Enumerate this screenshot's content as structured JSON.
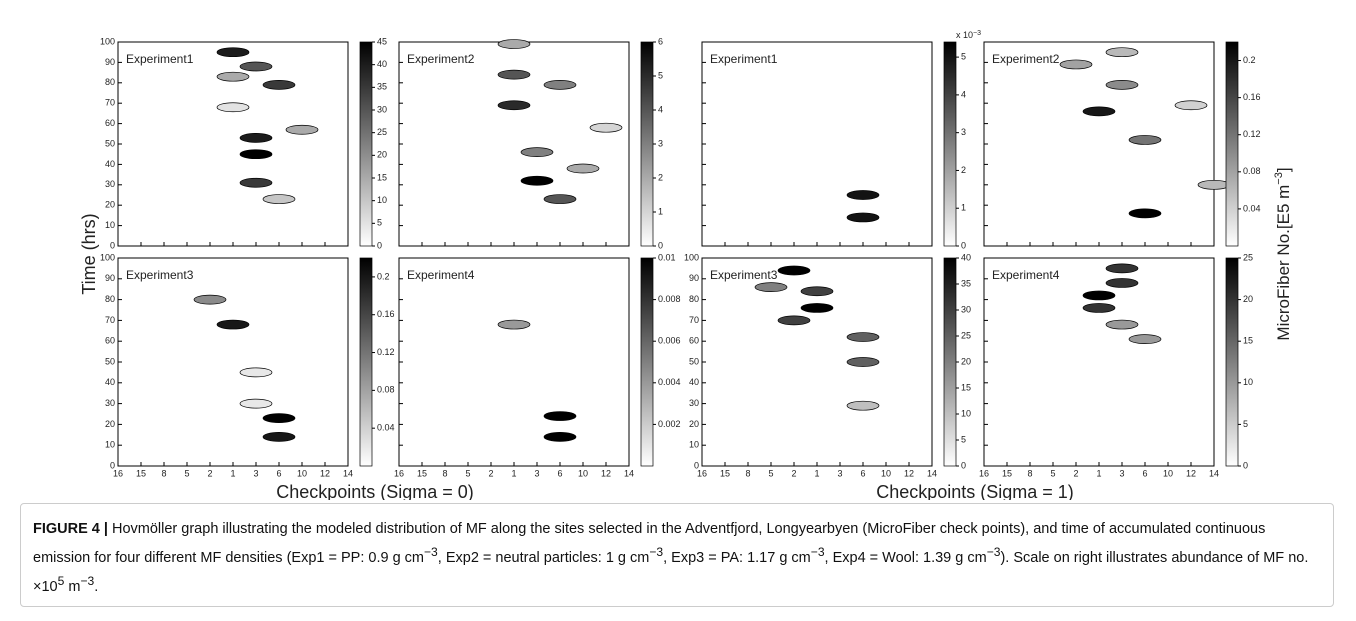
{
  "figure": {
    "ylabel": "Time (hrs)",
    "xlabel_left": "Checkpoints (Sigma = 0)",
    "xlabel_right": "Checkpoints (Sigma = 1)",
    "cbar_label": "MicroFiber No.[E5 m",
    "cbar_label_exp": "−3",
    "cbar_label_end": "]"
  },
  "chart_data": [
    {
      "type": "contour",
      "title": "Experiment1",
      "categories": [
        "16",
        "15",
        "8",
        "5",
        "2",
        "1",
        "3",
        "6",
        "10",
        "12",
        "14"
      ],
      "ylim": [
        0,
        100
      ],
      "yticks": [
        0,
        10,
        20,
        30,
        40,
        50,
        60,
        70,
        80,
        90,
        100
      ],
      "ytick_labels": true,
      "xtick_labels": false,
      "hotspots": [
        {
          "x": "1",
          "y": 95,
          "value": 40
        },
        {
          "x": "3",
          "y": 88,
          "value": 30
        },
        {
          "x": "6",
          "y": 79,
          "value": 35
        },
        {
          "x": "1",
          "y": 83,
          "value": 15
        },
        {
          "x": "1",
          "y": 68,
          "value": 5
        },
        {
          "x": "10",
          "y": 57,
          "value": 15
        },
        {
          "x": "3",
          "y": 53,
          "value": 40
        },
        {
          "x": "3",
          "y": 45,
          "value": 45
        },
        {
          "x": "3",
          "y": 31,
          "value": 35
        },
        {
          "x": "6",
          "y": 23,
          "value": 10
        }
      ],
      "colorbar": {
        "lim": [
          0,
          45
        ],
        "ticks": [
          0,
          5,
          10,
          15,
          20,
          25,
          30,
          35,
          40,
          45
        ]
      }
    },
    {
      "type": "contour",
      "title": "Experiment2",
      "categories": [
        "16",
        "15",
        "8",
        "5",
        "2",
        "1",
        "3",
        "6",
        "10",
        "12",
        "14"
      ],
      "ylim": [
        0,
        100
      ],
      "yticks": [
        0,
        10,
        20,
        30,
        40,
        50,
        60,
        70,
        80,
        90,
        100
      ],
      "ytick_labels": false,
      "xtick_labels": false,
      "hotspots": [
        {
          "x": "1",
          "y": 99,
          "value": 2
        },
        {
          "x": "1",
          "y": 84,
          "value": 4
        },
        {
          "x": "6",
          "y": 79,
          "value": 3
        },
        {
          "x": "1",
          "y": 69,
          "value": 5
        },
        {
          "x": "12",
          "y": 58,
          "value": 1
        },
        {
          "x": "3",
          "y": 46,
          "value": 3
        },
        {
          "x": "10",
          "y": 38,
          "value": 2
        },
        {
          "x": "3",
          "y": 32,
          "value": 6
        },
        {
          "x": "6",
          "y": 23,
          "value": 4
        }
      ],
      "colorbar": {
        "lim": [
          0,
          6
        ],
        "ticks": [
          0,
          1,
          2,
          3,
          4,
          5,
          6
        ]
      }
    },
    {
      "type": "contour",
      "title": "Experiment1",
      "categories": [
        "16",
        "15",
        "8",
        "5",
        "2",
        "1",
        "3",
        "6",
        "10",
        "12",
        "14"
      ],
      "ylim": [
        0,
        100
      ],
      "yticks": [
        0,
        10,
        20,
        30,
        40,
        50,
        60,
        70,
        80,
        90,
        100
      ],
      "ytick_labels": false,
      "xtick_labels": false,
      "hotspots": [
        {
          "x": "6",
          "y": 25,
          "value": 5
        },
        {
          "x": "6",
          "y": 14,
          "value": 5
        }
      ],
      "colorbar": {
        "lim": [
          0,
          5.4
        ],
        "ticks": [
          0,
          1,
          2,
          3,
          4,
          5
        ],
        "note": "x 10",
        "note_exp": "−3"
      }
    },
    {
      "type": "contour",
      "title": "Experiment2",
      "categories": [
        "16",
        "15",
        "8",
        "5",
        "2",
        "1",
        "3",
        "6",
        "10",
        "12",
        "14"
      ],
      "ylim": [
        0,
        100
      ],
      "yticks": [
        0,
        10,
        20,
        30,
        40,
        50,
        60,
        70,
        80,
        90,
        100
      ],
      "ytick_labels": false,
      "xtick_labels": false,
      "hotspots": [
        {
          "x": "3",
          "y": 95,
          "value": 0.06
        },
        {
          "x": "2",
          "y": 89,
          "value": 0.08
        },
        {
          "x": "3",
          "y": 79,
          "value": 0.1
        },
        {
          "x": "12",
          "y": 69,
          "value": 0.04
        },
        {
          "x": "1",
          "y": 66,
          "value": 0.2
        },
        {
          "x": "6",
          "y": 52,
          "value": 0.12
        },
        {
          "x": "14",
          "y": 30,
          "value": 0.06
        },
        {
          "x": "6",
          "y": 16,
          "value": 0.22
        }
      ],
      "colorbar": {
        "lim": [
          0,
          0.22
        ],
        "ticks": [
          0.04,
          0.08,
          0.12,
          0.16,
          0.2
        ]
      }
    },
    {
      "type": "contour",
      "title": "Experiment3",
      "categories": [
        "16",
        "15",
        "8",
        "5",
        "2",
        "1",
        "3",
        "6",
        "10",
        "12",
        "14"
      ],
      "ylim": [
        0,
        100
      ],
      "yticks": [
        0,
        10,
        20,
        30,
        40,
        50,
        60,
        70,
        80,
        90,
        100
      ],
      "ytick_labels": true,
      "xtick_labels": true,
      "hotspots": [
        {
          "x": "2",
          "y": 80,
          "value": 0.1
        },
        {
          "x": "1",
          "y": 68,
          "value": 0.2
        },
        {
          "x": "3",
          "y": 45,
          "value": 0.02
        },
        {
          "x": "3",
          "y": 30,
          "value": 0.02
        },
        {
          "x": "6",
          "y": 23,
          "value": 0.22
        },
        {
          "x": "6",
          "y": 14,
          "value": 0.2
        }
      ],
      "colorbar": {
        "lim": [
          0,
          0.22
        ],
        "ticks": [
          0.04,
          0.08,
          0.12,
          0.16,
          0.2
        ]
      }
    },
    {
      "type": "contour",
      "title": "Experiment4",
      "categories": [
        "16",
        "15",
        "8",
        "5",
        "2",
        "1",
        "3",
        "6",
        "10",
        "12",
        "14"
      ],
      "ylim": [
        0,
        100
      ],
      "yticks": [
        0,
        10,
        20,
        30,
        40,
        50,
        60,
        70,
        80,
        90,
        100
      ],
      "ytick_labels": false,
      "xtick_labels": true,
      "hotspots": [
        {
          "x": "1",
          "y": 68,
          "value": 0.004
        },
        {
          "x": "6",
          "y": 24,
          "value": 0.01
        },
        {
          "x": "6",
          "y": 14,
          "value": 0.01
        }
      ],
      "colorbar": {
        "lim": [
          0,
          0.01
        ],
        "ticks": [
          0.002,
          0.004,
          0.006,
          0.008,
          0.01
        ]
      }
    },
    {
      "type": "contour",
      "title": "Experiment3",
      "categories": [
        "16",
        "15",
        "8",
        "5",
        "2",
        "1",
        "3",
        "6",
        "10",
        "12",
        "14"
      ],
      "ylim": [
        0,
        100
      ],
      "yticks": [
        0,
        10,
        20,
        30,
        40,
        50,
        60,
        70,
        80,
        90,
        100
      ],
      "ytick_labels": true,
      "xtick_labels": true,
      "hotspots": [
        {
          "x": "2",
          "y": 94,
          "value": 40
        },
        {
          "x": "5",
          "y": 86,
          "value": 20
        },
        {
          "x": "1",
          "y": 84,
          "value": 30
        },
        {
          "x": "1",
          "y": 76,
          "value": 40
        },
        {
          "x": "2",
          "y": 70,
          "value": 30
        },
        {
          "x": "6",
          "y": 62,
          "value": 25
        },
        {
          "x": "6",
          "y": 50,
          "value": 25
        },
        {
          "x": "6",
          "y": 29,
          "value": 10
        }
      ],
      "colorbar": {
        "lim": [
          0,
          40
        ],
        "ticks": [
          0,
          5,
          10,
          15,
          20,
          25,
          30,
          35,
          40
        ]
      }
    },
    {
      "type": "contour",
      "title": "Experiment4",
      "categories": [
        "16",
        "15",
        "8",
        "5",
        "2",
        "1",
        "3",
        "6",
        "10",
        "12",
        "14"
      ],
      "ylim": [
        0,
        100
      ],
      "yticks": [
        0,
        10,
        20,
        30,
        40,
        50,
        60,
        70,
        80,
        90,
        100
      ],
      "ytick_labels": false,
      "xtick_labels": true,
      "hotspots": [
        {
          "x": "3",
          "y": 95,
          "value": 20
        },
        {
          "x": "3",
          "y": 88,
          "value": 20
        },
        {
          "x": "1",
          "y": 82,
          "value": 25
        },
        {
          "x": "1",
          "y": 76,
          "value": 20
        },
        {
          "x": "3",
          "y": 68,
          "value": 10
        },
        {
          "x": "6",
          "y": 61,
          "value": 10
        }
      ],
      "colorbar": {
        "lim": [
          0,
          25
        ],
        "ticks": [
          0,
          5,
          10,
          15,
          20,
          25
        ]
      }
    }
  ],
  "caption": {
    "label": "FIGURE 4 |",
    "parts": [
      "Hovmöller graph illustrating the modeled distribution of MF along the sites selected in the Adventfjord, Longyearbyen (MicroFiber check points), and time of accumulated continuous emission for four different MF densities (Exp1 = PP: 0.9 g cm",
      "−3",
      ", Exp2 = neutral particles: 1 g cm",
      "−3",
      ", Exp3 = PA: 1.17 g cm",
      "−3",
      ", Exp4 = Wool: 1.39 g cm",
      "−3",
      "). Scale on right illustrates abundance of MF no. ×10",
      "5",
      " m",
      "−3",
      "."
    ]
  }
}
